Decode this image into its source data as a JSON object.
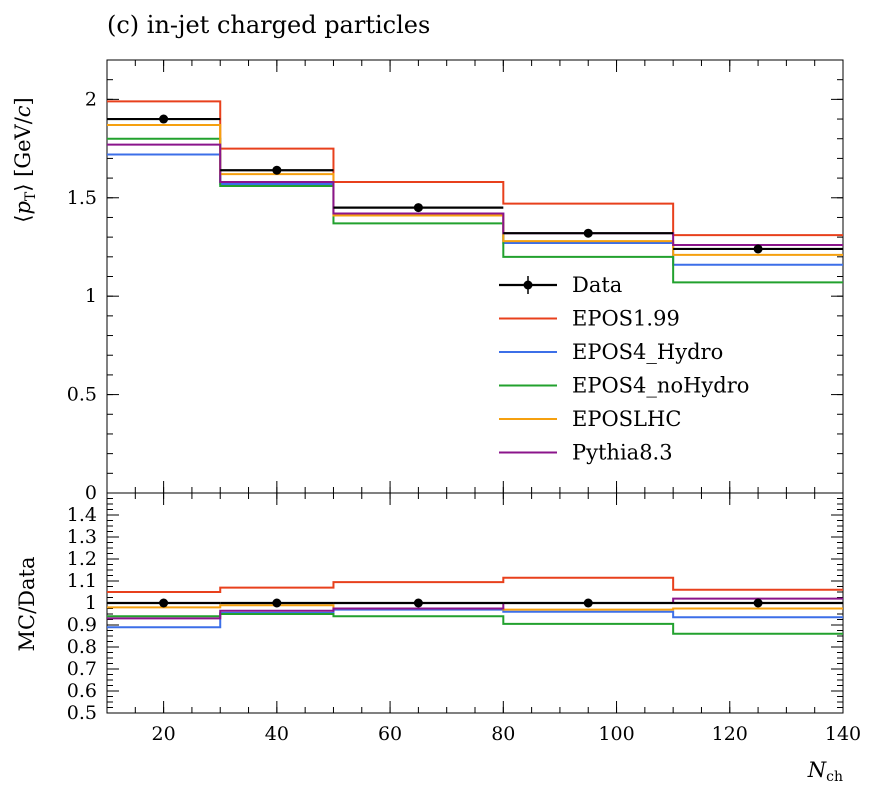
{
  "chart_data": [
    {
      "type": "line",
      "step": true,
      "title": "(c) in-jet charged particles",
      "xlabel": "",
      "ylabel": "⟨pT⟩ [GeV/c]",
      "ylabel_parts": {
        "open": "⟨",
        "var": "p",
        "sub": "T",
        "close": "⟩ [GeV/",
        "unit": "c",
        "end": "]"
      },
      "xlim": [
        10,
        140
      ],
      "ylim": [
        0,
        2.2
      ],
      "yticks": [
        0,
        0.5,
        1,
        1.5,
        2
      ],
      "ytick_labels": [
        "0",
        "0.5",
        "1",
        "1.5",
        "2"
      ],
      "bin_edges": [
        10,
        30,
        50,
        80,
        110,
        140
      ],
      "data": {
        "name": "Data",
        "x": [
          20,
          40,
          65,
          95,
          125
        ],
        "y": [
          1.9,
          1.64,
          1.45,
          1.32,
          1.24
        ]
      },
      "series": [
        {
          "name": "EPOS1.99",
          "color": "#e8401c",
          "values": [
            1.99,
            1.75,
            1.58,
            1.47,
            1.31
          ]
        },
        {
          "name": "EPOS4_Hydro",
          "color": "#3c6fe8",
          "values": [
            1.72,
            1.57,
            1.42,
            1.27,
            1.16
          ]
        },
        {
          "name": "EPOS4_noHydro",
          "color": "#22a12e",
          "values": [
            1.8,
            1.56,
            1.37,
            1.2,
            1.07
          ]
        },
        {
          "name": "EPOSLHC",
          "color": "#f5a00f",
          "values": [
            1.87,
            1.62,
            1.41,
            1.28,
            1.21
          ]
        },
        {
          "name": "Pythia8.3",
          "color": "#8b148b",
          "values": [
            1.77,
            1.58,
            1.42,
            1.32,
            1.26
          ]
        }
      ],
      "legend": "right-center",
      "grid": false
    },
    {
      "type": "line",
      "step": true,
      "ylabel": "MC/Data",
      "xlabel": "Nch",
      "xlabel_parts": {
        "var": "N",
        "sub": "ch"
      },
      "xlim": [
        10,
        140
      ],
      "ylim": [
        0.5,
        1.5
      ],
      "yticks": [
        0.5,
        0.6,
        0.7,
        0.8,
        0.9,
        1,
        1.1,
        1.2,
        1.3,
        1.4
      ],
      "ytick_labels": [
        "0.5",
        "0.6",
        "0.7",
        "0.8",
        "0.9",
        "1",
        "1.1",
        "1.2",
        "1.3",
        "1.4"
      ],
      "xticks": [
        20,
        40,
        60,
        80,
        100,
        120,
        140
      ],
      "xtick_labels": [
        "20",
        "40",
        "60",
        "80",
        "100",
        "120",
        "140"
      ],
      "bin_edges": [
        10,
        30,
        50,
        80,
        110,
        140
      ],
      "data": {
        "name": "Data",
        "x": [
          20,
          40,
          65,
          95,
          125
        ],
        "y": [
          1,
          1,
          1,
          1,
          1
        ]
      },
      "series": [
        {
          "name": "EPOS1.99",
          "color": "#e8401c",
          "values": [
            1.05,
            1.07,
            1.095,
            1.115,
            1.06
          ]
        },
        {
          "name": "EPOS4_Hydro",
          "color": "#3c6fe8",
          "values": [
            0.89,
            0.955,
            0.97,
            0.96,
            0.935
          ]
        },
        {
          "name": "EPOS4_noHydro",
          "color": "#22a12e",
          "values": [
            0.94,
            0.95,
            0.94,
            0.905,
            0.86
          ]
        },
        {
          "name": "EPOSLHC",
          "color": "#f5a00f",
          "values": [
            0.98,
            0.99,
            0.975,
            0.97,
            0.975
          ]
        },
        {
          "name": "Pythia8.3",
          "color": "#8b148b",
          "values": [
            0.93,
            0.965,
            0.975,
            1.0,
            1.02
          ]
        }
      ],
      "grid": false
    }
  ]
}
